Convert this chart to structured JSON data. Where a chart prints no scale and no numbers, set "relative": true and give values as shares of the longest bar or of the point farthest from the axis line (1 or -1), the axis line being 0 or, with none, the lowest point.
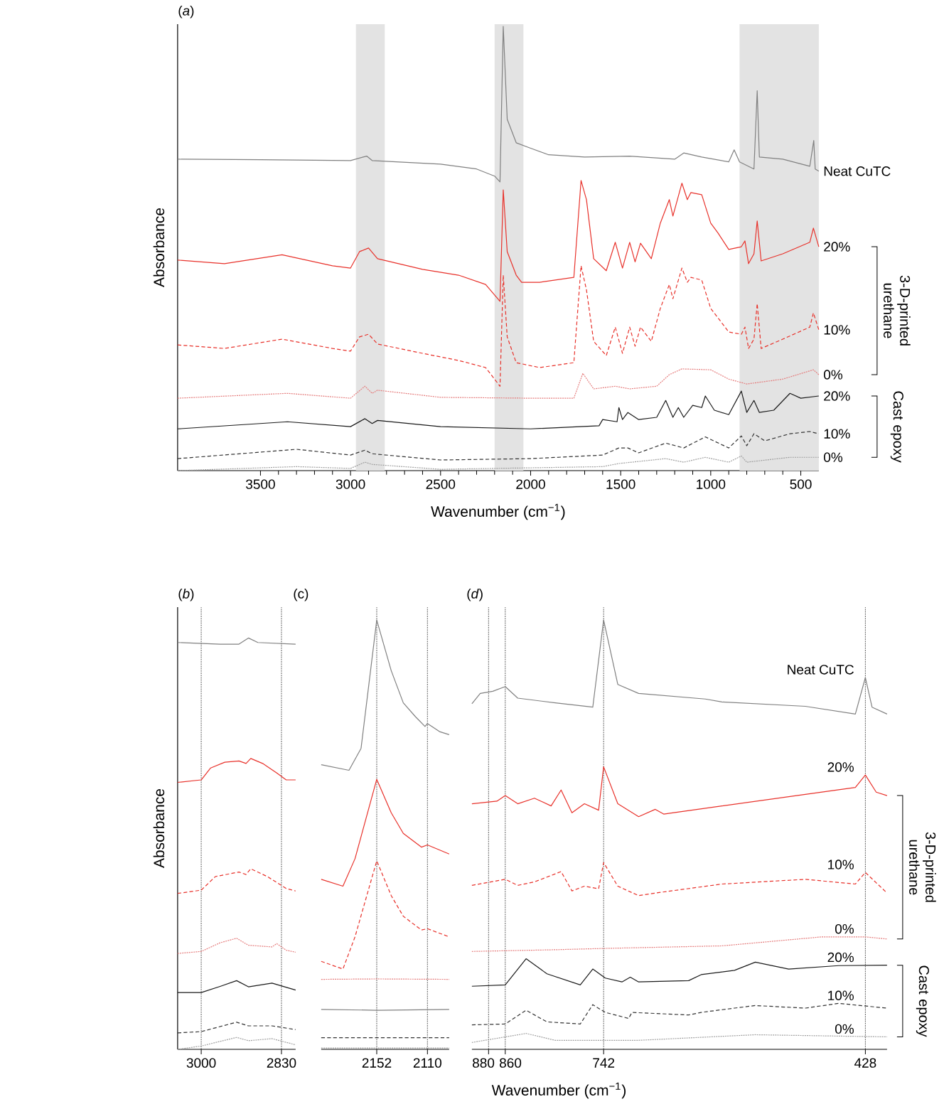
{
  "chart_data": [
    {
      "type": "line",
      "title": "(*a*)",
      "xlabel": "Wavenumber (cm$^{−1}$)",
      "ylabel": "Absorbance",
      "relative": true,
      "tick_labels": "x",
      "xlim": [
        3960,
        400
      ],
      "xticks": [
        3500,
        3000,
        2500,
        2000,
        1500,
        1000,
        500
      ],
      "bands": [
        {
          "axis": "x",
          "from": 2970,
          "to": 2810,
          "color": "#e3e3e3"
        },
        {
          "axis": "x",
          "from": 2200,
          "to": 2040,
          "color": "#e3e3e3"
        },
        {
          "axis": "x",
          "from": 840,
          "to": 400,
          "color": "#e3e3e3"
        }
      ],
      "annotations": [
        "3-D-printed urethane",
        "Cast epoxy"
      ],
      "series": [
        {
          "name": "Neat CuTC",
          "color": "#808080",
          "line_style": "solid",
          "x": [
            3960,
            3500,
            3000,
            2910,
            2880,
            2500,
            2300,
            2200,
            2170,
            2152,
            2130,
            2080,
            2008,
            1900,
            1700,
            1450,
            1200,
            1150,
            1050,
            900,
            870,
            840,
            760,
            742,
            730,
            600,
            450,
            428,
            420,
            400
          ],
          "values": [
            0.701,
            0.7,
            0.698,
            0.708,
            0.698,
            0.69,
            0.679,
            0.663,
            0.65,
            1.0,
            0.791,
            0.738,
            0.727,
            0.711,
            0.706,
            0.708,
            0.701,
            0.715,
            0.706,
            0.695,
            0.722,
            0.695,
            0.679,
            0.855,
            0.706,
            0.701,
            0.685,
            0.743,
            0.679,
            0.674
          ]
        },
        {
          "name": "20%",
          "color": "#e8312a",
          "line_style": "solid",
          "x": [
            3960,
            3700,
            3380,
            3100,
            3000,
            2950,
            2900,
            2850,
            2600,
            2400,
            2250,
            2170,
            2152,
            2130,
            2080,
            2050,
            1950,
            1760,
            1720,
            1690,
            1650,
            1580,
            1530,
            1490,
            1450,
            1420,
            1390,
            1330,
            1280,
            1230,
            1210,
            1160,
            1130,
            1110,
            1050,
            1000,
            960,
            900,
            830,
            810,
            790,
            760,
            742,
            720,
            600,
            450,
            430,
            400
          ],
          "values": [
            0.474,
            0.466,
            0.486,
            0.461,
            0.456,
            0.493,
            0.501,
            0.477,
            0.453,
            0.44,
            0.419,
            0.381,
            0.632,
            0.493,
            0.44,
            0.424,
            0.424,
            0.435,
            0.653,
            0.61,
            0.477,
            0.45,
            0.514,
            0.456,
            0.514,
            0.47,
            0.512,
            0.477,
            0.557,
            0.61,
            0.573,
            0.647,
            0.61,
            0.626,
            0.621,
            0.557,
            0.535,
            0.498,
            0.504,
            0.517,
            0.466,
            0.488,
            0.562,
            0.472,
            0.488,
            0.514,
            0.546,
            0.504
          ]
        },
        {
          "name": "10%",
          "color": "#e8312a",
          "line_style": "dashed",
          "x": [
            3960,
            3700,
            3380,
            3100,
            3000,
            2950,
            2900,
            2850,
            2600,
            2400,
            2250,
            2170,
            2152,
            2130,
            2080,
            1950,
            1760,
            1720,
            1690,
            1650,
            1580,
            1530,
            1490,
            1450,
            1420,
            1390,
            1330,
            1280,
            1230,
            1210,
            1160,
            1130,
            1110,
            1050,
            1000,
            960,
            900,
            830,
            810,
            790,
            760,
            742,
            720,
            600,
            450,
            430,
            400
          ],
          "values": [
            0.283,
            0.275,
            0.296,
            0.275,
            0.269,
            0.301,
            0.307,
            0.285,
            0.264,
            0.248,
            0.232,
            0.19,
            0.44,
            0.301,
            0.243,
            0.232,
            0.243,
            0.461,
            0.407,
            0.291,
            0.259,
            0.323,
            0.264,
            0.323,
            0.28,
            0.323,
            0.291,
            0.365,
            0.419,
            0.387,
            0.456,
            0.424,
            0.435,
            0.429,
            0.365,
            0.344,
            0.312,
            0.307,
            0.323,
            0.275,
            0.296,
            0.376,
            0.275,
            0.296,
            0.323,
            0.355,
            0.317
          ]
        },
        {
          "name": "0%",
          "color": "#e57c7c",
          "line_style": "dotted",
          "x": [
            3960,
            3350,
            3000,
            2920,
            2880,
            2850,
            2500,
            2000,
            1760,
            1710,
            1650,
            1530,
            1450,
            1300,
            1230,
            1160,
            1000,
            900,
            800,
            600,
            430,
            400
          ],
          "values": [
            0.163,
            0.174,
            0.163,
            0.19,
            0.174,
            0.181,
            0.165,
            0.163,
            0.163,
            0.219,
            0.184,
            0.19,
            0.184,
            0.19,
            0.216,
            0.229,
            0.227,
            0.206,
            0.195,
            0.206,
            0.227,
            0.216
          ]
        },
        {
          "name": "20%",
          "color": "#1a1a1a",
          "line_style": "solid",
          "x": [
            3960,
            3350,
            3000,
            2920,
            2880,
            2850,
            2500,
            2000,
            1620,
            1600,
            1520,
            1510,
            1490,
            1460,
            1400,
            1300,
            1250,
            1210,
            1180,
            1150,
            1100,
            1050,
            1030,
            980,
            900,
            830,
            800,
            760,
            730,
            650,
            560,
            500,
            400
          ],
          "values": [
            0.094,
            0.11,
            0.099,
            0.117,
            0.106,
            0.113,
            0.099,
            0.094,
            0.101,
            0.115,
            0.11,
            0.142,
            0.115,
            0.131,
            0.115,
            0.12,
            0.158,
            0.12,
            0.142,
            0.12,
            0.147,
            0.142,
            0.168,
            0.136,
            0.126,
            0.179,
            0.131,
            0.158,
            0.131,
            0.136,
            0.174,
            0.163,
            0.168
          ]
        },
        {
          "name": "10%",
          "color": "#333333",
          "line_style": "dashed",
          "x": [
            3960,
            3300,
            3000,
            2920,
            2880,
            2500,
            2000,
            1600,
            1510,
            1460,
            1400,
            1250,
            1150,
            1030,
            900,
            830,
            800,
            760,
            700,
            560,
            450,
            400
          ],
          "values": [
            0.027,
            0.048,
            0.035,
            0.046,
            0.038,
            0.024,
            0.027,
            0.035,
            0.051,
            0.051,
            0.04,
            0.062,
            0.051,
            0.076,
            0.051,
            0.078,
            0.056,
            0.083,
            0.067,
            0.083,
            0.088,
            0.083
          ]
        },
        {
          "name": "0%",
          "color": "#a0a0a0",
          "line_style": "dotted",
          "x": [
            3960,
            3300,
            3000,
            2920,
            2880,
            2500,
            1600,
            1510,
            1250,
            1150,
            1030,
            900,
            830,
            800,
            560,
            400
          ],
          "values": [
            0.0,
            0.009,
            0.005,
            0.019,
            0.014,
            0.003,
            0.009,
            0.016,
            0.027,
            0.019,
            0.03,
            0.019,
            0.033,
            0.019,
            0.03,
            0.03
          ]
        }
      ]
    },
    {
      "type": "line",
      "title": "(*b*)",
      "ylabel": "Absorbance",
      "relative": true,
      "tick_labels": "x",
      "xlim": [
        3050,
        2800
      ],
      "xticks": [
        3000,
        2830
      ],
      "ref_lines": [
        {
          "axis": "x",
          "value": 3000,
          "color": "#606060",
          "line_style": "dotted"
        },
        {
          "axis": "x",
          "value": 2830,
          "color": "#606060",
          "line_style": "dotted"
        }
      ],
      "series": [
        {
          "color": "#808080",
          "line_style": "solid",
          "x": [
            3050,
            2960,
            2920,
            2900,
            2880,
            2800
          ],
          "values": [
            0.989,
            0.985,
            0.985,
            1.0,
            0.989,
            0.985
          ]
        },
        {
          "color": "#e8312a",
          "line_style": "solid",
          "x": [
            3050,
            3000,
            2980,
            2950,
            2920,
            2905,
            2895,
            2870,
            2840,
            2820,
            2800
          ],
          "values": [
            0.649,
            0.655,
            0.684,
            0.698,
            0.701,
            0.695,
            0.707,
            0.695,
            0.672,
            0.655,
            0.655
          ]
        },
        {
          "color": "#e8312a",
          "line_style": "dashed",
          "x": [
            3050,
            3000,
            2970,
            2920,
            2905,
            2895,
            2860,
            2820,
            2800
          ],
          "values": [
            0.379,
            0.387,
            0.42,
            0.431,
            0.425,
            0.439,
            0.42,
            0.391,
            0.385
          ]
        },
        {
          "color": "#e57c7c",
          "line_style": "dotted",
          "x": [
            3050,
            3000,
            2960,
            2925,
            2900,
            2850,
            2840,
            2820,
            2800
          ],
          "values": [
            0.233,
            0.238,
            0.259,
            0.27,
            0.253,
            0.249,
            0.257,
            0.241,
            0.236
          ]
        },
        {
          "color": "#1a1a1a",
          "line_style": "solid",
          "x": [
            3050,
            3000,
            2960,
            2925,
            2900,
            2850,
            2800
          ],
          "values": [
            0.138,
            0.138,
            0.153,
            0.167,
            0.152,
            0.161,
            0.144
          ]
        },
        {
          "color": "#333333",
          "line_style": "dashed",
          "x": [
            3050,
            3000,
            2925,
            2900,
            2850,
            2800
          ],
          "values": [
            0.04,
            0.043,
            0.066,
            0.057,
            0.057,
            0.048
          ]
        },
        {
          "color": "#a0a0a0",
          "line_style": "dotted",
          "x": [
            3050,
            3000,
            2925,
            2900,
            2850,
            2800
          ],
          "values": [
            0.0,
            0.008,
            0.029,
            0.021,
            0.026,
            0.011
          ]
        }
      ]
    },
    {
      "type": "line",
      "title": "(c)",
      "relative": true,
      "tick_labels": "x",
      "xlim": [
        2198,
        2092
      ],
      "xticks": [
        2152,
        2110
      ],
      "ref_lines": [
        {
          "axis": "x",
          "value": 2152,
          "color": "#606060",
          "line_style": "dotted"
        },
        {
          "axis": "x",
          "value": 2110,
          "color": "#606060",
          "line_style": "dotted"
        }
      ],
      "series": [
        {
          "color": "#808080",
          "line_style": "solid",
          "x": [
            2198,
            2175,
            2165,
            2152,
            2140,
            2130,
            2120,
            2112,
            2110,
            2100,
            2092
          ],
          "values": [
            0.663,
            0.65,
            0.701,
            1.0,
            0.882,
            0.807,
            0.775,
            0.752,
            0.759,
            0.74,
            0.733
          ]
        },
        {
          "color": "#e8312a",
          "line_style": "solid",
          "x": [
            2198,
            2180,
            2170,
            2152,
            2140,
            2130,
            2115,
            2110,
            2092
          ],
          "values": [
            0.396,
            0.38,
            0.444,
            0.629,
            0.551,
            0.503,
            0.471,
            0.476,
            0.455
          ]
        },
        {
          "color": "#e8312a",
          "line_style": "dashed",
          "x": [
            2198,
            2180,
            2170,
            2152,
            2140,
            2130,
            2115,
            2110,
            2092
          ],
          "values": [
            0.205,
            0.187,
            0.262,
            0.439,
            0.358,
            0.31,
            0.278,
            0.281,
            0.262
          ]
        },
        {
          "color": "#e57c7c",
          "line_style": "dotted",
          "x": [
            2198,
            2152,
            2092
          ],
          "values": [
            0.163,
            0.164,
            0.163
          ]
        },
        {
          "color": "#808080",
          "line_style": "solid",
          "x": [
            2198,
            2152,
            2092
          ],
          "values": [
            0.093,
            0.091,
            0.093
          ]
        },
        {
          "color": "#333333",
          "line_style": "dashed",
          "x": [
            2198,
            2092
          ],
          "values": [
            0.027,
            0.027
          ]
        },
        {
          "color": "#a0a0a0",
          "line_style": "dotted",
          "x": [
            2198,
            2092
          ],
          "values": [
            0.003,
            0.003
          ]
        }
      ]
    },
    {
      "type": "line",
      "title": "(*d*)",
      "xlabel": "Wavenumber (cm$^{−1}$)",
      "relative": true,
      "tick_labels": "x",
      "xlim": [
        900,
        402
      ],
      "xticks": [
        880,
        860,
        742,
        428
      ],
      "ref_lines": [
        {
          "axis": "x",
          "value": 880,
          "color": "#606060",
          "line_style": "dotted"
        },
        {
          "axis": "x",
          "value": 860,
          "color": "#606060",
          "line_style": "dotted"
        },
        {
          "axis": "x",
          "value": 742,
          "color": "#606060",
          "line_style": "dotted"
        },
        {
          "axis": "x",
          "value": 428,
          "color": "#606060",
          "line_style": "dotted"
        }
      ],
      "annotations": [
        "3-D-printed urethane",
        "Cast epoxy"
      ],
      "series": [
        {
          "name": "Neat CuTC",
          "color": "#808080",
          "line_style": "solid",
          "x": [
            900,
            890,
            875,
            860,
            845,
            800,
            755,
            742,
            725,
            700,
            620,
            600,
            500,
            440,
            428,
            420,
            402
          ],
          "values": [
            0.805,
            0.829,
            0.834,
            0.845,
            0.818,
            0.807,
            0.797,
            1.0,
            0.85,
            0.829,
            0.816,
            0.809,
            0.799,
            0.781,
            0.866,
            0.797,
            0.781
          ]
        },
        {
          "name": "20%",
          "color": "#e8312a",
          "line_style": "solid",
          "x": [
            900,
            870,
            860,
            845,
            825,
            805,
            793,
            780,
            765,
            748,
            742,
            725,
            700,
            680,
            670,
            600,
            500,
            440,
            428,
            415,
            402
          ],
          "values": [
            0.572,
            0.578,
            0.591,
            0.572,
            0.585,
            0.567,
            0.604,
            0.551,
            0.572,
            0.557,
            0.658,
            0.572,
            0.542,
            0.559,
            0.548,
            0.567,
            0.594,
            0.61,
            0.639,
            0.599,
            0.591
          ]
        },
        {
          "name": "10%",
          "color": "#e8312a",
          "line_style": "dashed",
          "x": [
            900,
            860,
            845,
            825,
            793,
            780,
            765,
            748,
            742,
            725,
            700,
            680,
            600,
            500,
            440,
            428,
            402
          ],
          "values": [
            0.382,
            0.396,
            0.382,
            0.39,
            0.414,
            0.369,
            0.38,
            0.374,
            0.435,
            0.38,
            0.358,
            0.364,
            0.385,
            0.396,
            0.385,
            0.412,
            0.364
          ]
        },
        {
          "name": "0%",
          "color": "#e57c7c",
          "line_style": "dotted",
          "x": [
            900,
            800,
            742,
            600,
            480,
            428,
            402
          ],
          "values": [
            0.228,
            0.232,
            0.235,
            0.241,
            0.262,
            0.262,
            0.257
          ]
        },
        {
          "name": "20%",
          "color": "#1a1a1a",
          "line_style": "solid",
          "x": [
            900,
            860,
            835,
            810,
            770,
            755,
            740,
            720,
            710,
            700,
            640,
            625,
            585,
            560,
            520,
            460,
            402
          ],
          "values": [
            0.147,
            0.15,
            0.211,
            0.176,
            0.15,
            0.187,
            0.166,
            0.157,
            0.168,
            0.157,
            0.16,
            0.174,
            0.184,
            0.203,
            0.187,
            0.195,
            0.196
          ]
        },
        {
          "name": "10%",
          "color": "#333333",
          "line_style": "dashed",
          "x": [
            900,
            860,
            835,
            810,
            770,
            755,
            740,
            712,
            708,
            640,
            625,
            585,
            560,
            500,
            460,
            402
          ],
          "values": [
            0.057,
            0.059,
            0.091,
            0.064,
            0.059,
            0.104,
            0.086,
            0.072,
            0.086,
            0.08,
            0.086,
            0.096,
            0.102,
            0.096,
            0.107,
            0.096
          ]
        },
        {
          "name": "0%",
          "color": "#a0a0a0",
          "line_style": "dotted",
          "x": [
            900,
            835,
            800,
            700,
            560,
            402
          ],
          "values": [
            0.016,
            0.037,
            0.021,
            0.021,
            0.034,
            0.029
          ]
        }
      ]
    }
  ]
}
